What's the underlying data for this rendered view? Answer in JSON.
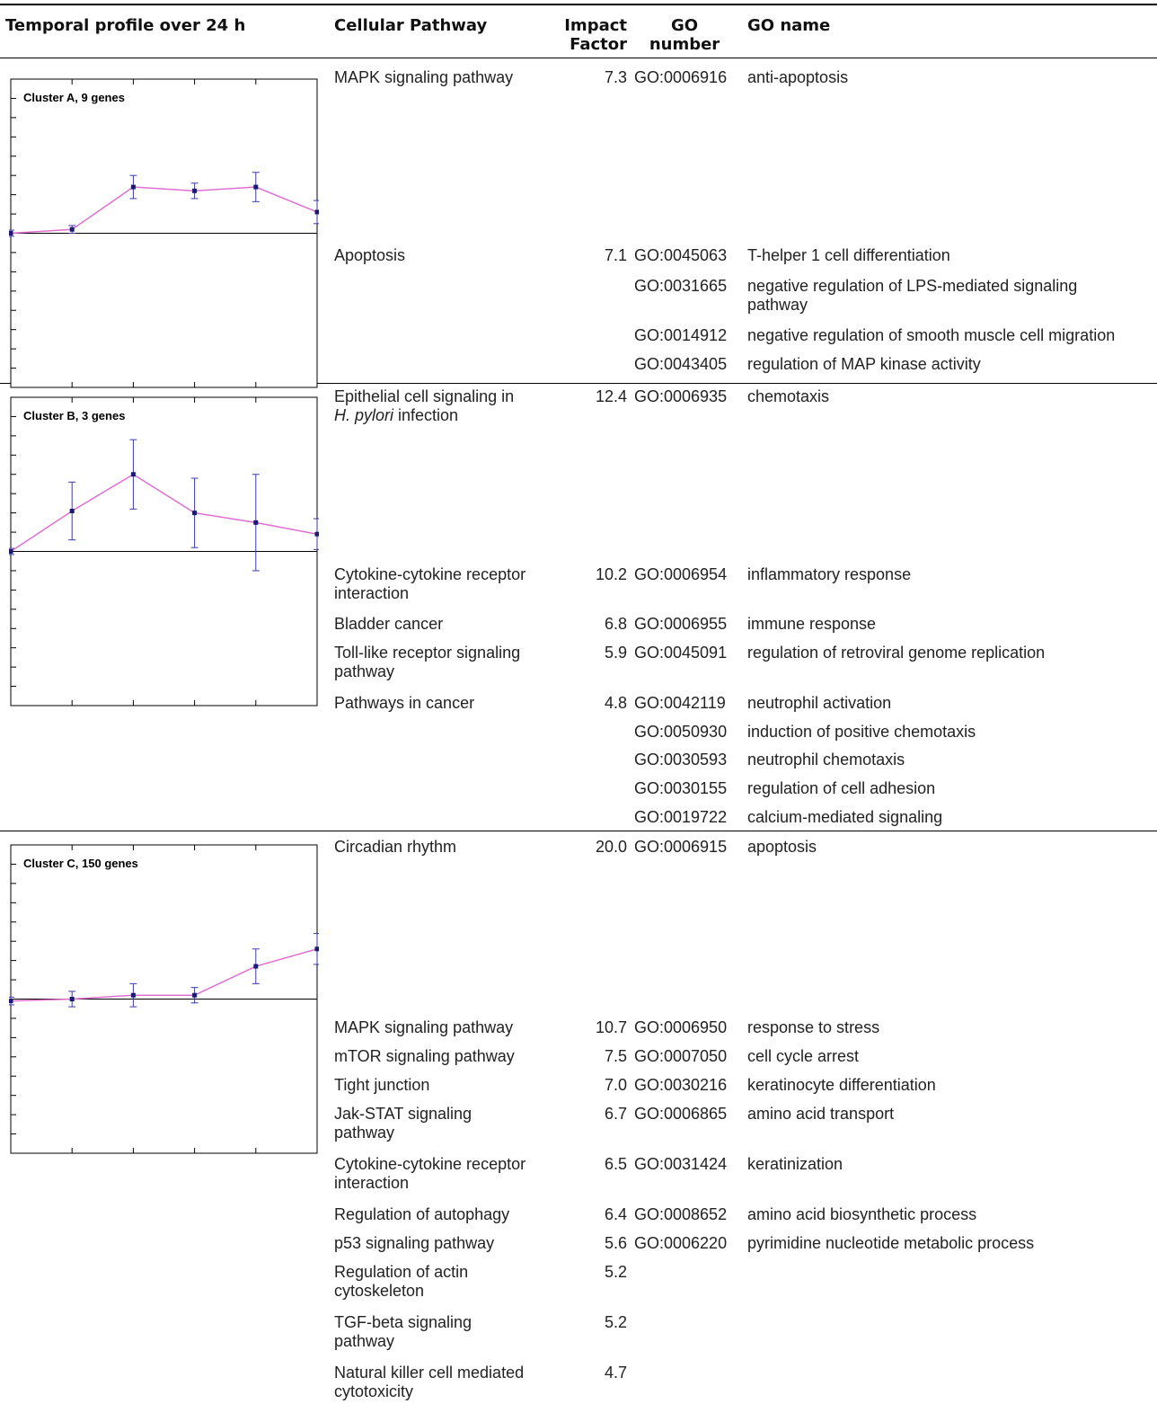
{
  "table": {
    "headers": {
      "profile": "Temporal profile over 24 h",
      "pathway": "Cellular Pathway",
      "impact": [
        "Impact",
        "Factor"
      ],
      "go_number": [
        "GO",
        "number"
      ],
      "go_name": "GO name"
    },
    "clusters": [
      {
        "pathways": [
          {
            "name": [
              "MAPK signaling pathway"
            ],
            "impact": "7.3"
          },
          {
            "name": [
              "Apoptosis"
            ],
            "impact": "7.1"
          }
        ],
        "go_terms": [
          {
            "number": "GO:0006916",
            "name": [
              "anti-apoptosis"
            ]
          },
          {
            "number": "GO:0045063",
            "name": [
              "T-helper 1 cell differentiation"
            ]
          },
          {
            "number": "GO:0031665",
            "name": [
              "negative regulation of LPS-mediated signaling",
              "pathway"
            ]
          },
          {
            "number": "GO:0014912",
            "name": [
              "negative regulation of smooth muscle cell migration"
            ]
          },
          {
            "number": "GO:0043405",
            "name": [
              "regulation of MAP kinase activity"
            ]
          }
        ]
      },
      {
        "pathways": [
          {
            "name": [
              "Epithelial cell signaling in",
              "H. pylori infection"
            ],
            "impact": "12.4"
          },
          {
            "name": [
              "Cytokine-cytokine receptor",
              "interaction"
            ],
            "impact": "10.2"
          },
          {
            "name": [
              "Bladder cancer"
            ],
            "impact": "6.8"
          },
          {
            "name": [
              "Toll-like receptor signaling",
              "pathway"
            ],
            "impact": "5.9"
          },
          {
            "name": [
              "Pathways in cancer"
            ],
            "impact": "4.8"
          }
        ],
        "go_terms": [
          {
            "number": "GO:0006935",
            "name": [
              "chemotaxis"
            ]
          },
          {
            "number": "GO:0006954",
            "name": [
              "inflammatory response"
            ]
          },
          {
            "number": "GO:0006955",
            "name": [
              "immune response"
            ]
          },
          {
            "number": "GO:0045091",
            "name": [
              "regulation of retroviral genome replication"
            ]
          },
          {
            "number": "GO:0042119",
            "name": [
              "neutrophil activation"
            ]
          },
          {
            "number": "GO:0050930",
            "name": [
              "induction of positive chemotaxis"
            ]
          },
          {
            "number": "GO:0030593",
            "name": [
              "neutrophil chemotaxis"
            ]
          },
          {
            "number": "GO:0030155",
            "name": [
              "regulation of cell adhesion"
            ]
          },
          {
            "number": "GO:0019722",
            "name": [
              "calcium-mediated signaling"
            ]
          }
        ]
      },
      {
        "pathways": [
          {
            "name": [
              "Circadian rhythm"
            ],
            "impact": "20.0"
          },
          {
            "name": [
              "MAPK signaling pathway"
            ],
            "impact": "10.7"
          },
          {
            "name": [
              "mTOR signaling pathway"
            ],
            "impact": "7.5"
          },
          {
            "name": [
              "Tight junction"
            ],
            "impact": "7.0"
          },
          {
            "name": [
              "Jak-STAT signaling",
              "pathway"
            ],
            "impact": "6.7"
          },
          {
            "name": [
              "Cytokine-cytokine receptor",
              "interaction"
            ],
            "impact": "6.5"
          },
          {
            "name": [
              "Regulation of autophagy"
            ],
            "impact": "6.4"
          },
          {
            "name": [
              "p53 signaling pathway"
            ],
            "impact": "5.6"
          },
          {
            "name": [
              "Regulation of actin",
              "cytoskeleton"
            ],
            "impact": "5.2"
          },
          {
            "name": [
              "TGF-beta signaling",
              "pathway"
            ],
            "impact": "5.2"
          },
          {
            "name": [
              "Natural killer cell mediated",
              "cytotoxicity"
            ],
            "impact": "4.7"
          }
        ],
        "go_terms": [
          {
            "number": "GO:0006915",
            "name": [
              "apoptosis"
            ]
          },
          {
            "number": "GO:0006950",
            "name": [
              "response to stress"
            ]
          },
          {
            "number": "GO:0007050",
            "name": [
              "cell cycle arrest"
            ]
          },
          {
            "number": "GO:0030216",
            "name": [
              "keratinocyte differentiation"
            ]
          },
          {
            "number": "GO:0006865",
            "name": [
              "amino acid transport"
            ]
          },
          {
            "number": "GO:0031424",
            "name": [
              "keratinization"
            ]
          },
          {
            "number": "GO:0008652",
            "name": [
              "amino acid biosynthetic process"
            ]
          },
          {
            "number": "GO:0006220",
            "name": [
              "pyrimidine nucleotide metabolic process"
            ]
          }
        ]
      }
    ]
  },
  "chart_data": [
    {
      "type": "line",
      "title": "Cluster A, 9 genes",
      "x": [
        0,
        1,
        2,
        3,
        4,
        5
      ],
      "ylim": [
        -4,
        4
      ],
      "color": "#e070d0",
      "marker_color": "#1a1a6e",
      "values": [
        0.0,
        0.1,
        1.2,
        1.1,
        1.2,
        0.55
      ],
      "errors": [
        0.08,
        0.1,
        0.3,
        0.2,
        0.38,
        0.3
      ]
    },
    {
      "type": "line",
      "title": "Cluster B, 3 genes",
      "x": [
        0,
        1,
        2,
        3,
        4,
        5
      ],
      "ylim": [
        -4,
        4
      ],
      "color": "#e070d0",
      "marker_color": "#1a1a6e",
      "values": [
        0.0,
        1.05,
        2.0,
        1.0,
        0.75,
        0.45
      ],
      "errors": [
        0.08,
        0.75,
        0.9,
        0.9,
        1.25,
        0.4
      ]
    },
    {
      "type": "line",
      "title": "Cluster C, 150 genes",
      "x": [
        0,
        1,
        2,
        3,
        4,
        5
      ],
      "ylim": [
        -4,
        4
      ],
      "color": "#e070d0",
      "marker_color": "#1a1a6e",
      "values": [
        -0.05,
        0.0,
        0.1,
        0.1,
        0.85,
        1.3
      ],
      "errors": [
        0.1,
        0.2,
        0.3,
        0.2,
        0.45,
        0.4
      ]
    }
  ]
}
